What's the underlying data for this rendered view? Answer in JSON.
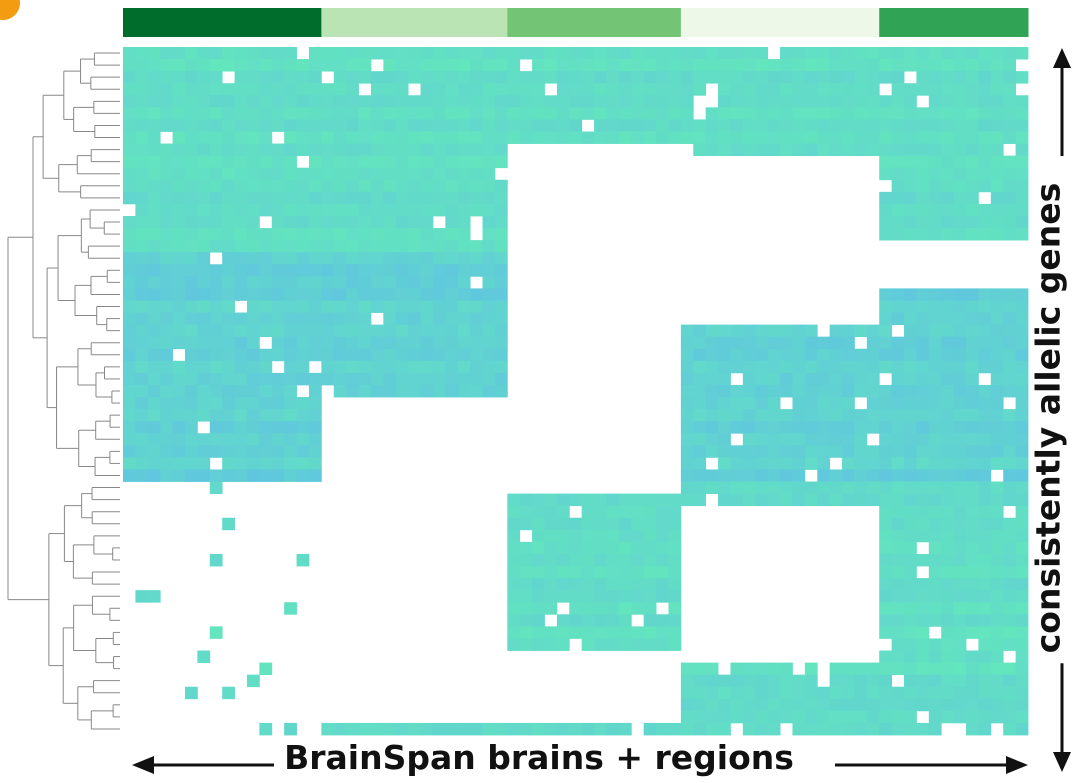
{
  "chart_data": {
    "type": "heatmap",
    "xlabel": "BrainSpan brains + regions",
    "ylabel": "consistently allelic genes",
    "n_rows": 57,
    "n_cols": 73,
    "dendrogram": "rows",
    "column_groups": [
      {
        "span": 16,
        "color": "#006d2c"
      },
      {
        "span": 15,
        "color": "#bae4b3"
      },
      {
        "span": 14,
        "color": "#74c476"
      },
      {
        "span": 16,
        "color": "#edf8e9"
      },
      {
        "span": 12,
        "color": "#31a354"
      }
    ],
    "cell_colors": {
      "low": "#5fbfe6",
      "high": "#63e6bc",
      "missing": "#ffffff"
    },
    "row_blocks": [
      {
        "rows": [
          0,
          16
        ],
        "value_range": [
          0.55,
          1.0
        ]
      },
      {
        "rows": [
          17,
          35
        ],
        "value_range": [
          0.15,
          0.75
        ]
      },
      {
        "rows": [
          36,
          56
        ],
        "value_range": [
          0.55,
          1.0
        ]
      }
    ],
    "missing_regions": [
      {
        "rows": [
          8,
          15
        ],
        "col_groups": [
          2
        ]
      },
      {
        "rows": [
          9,
          16
        ],
        "col_groups": [
          3
        ]
      },
      {
        "rows": [
          13,
          22
        ],
        "col_groups": [
          2,
          3
        ]
      },
      {
        "rows": [
          16,
          19
        ],
        "col_groups": [
          4
        ]
      },
      {
        "rows": [
          22,
          36
        ],
        "col_groups": [
          2
        ]
      },
      {
        "rows": [
          29,
          55
        ],
        "col_groups": [
          1
        ]
      },
      {
        "rows": [
          38,
          44
        ],
        "col_groups": [
          3
        ]
      },
      {
        "rows": [
          44,
          50
        ],
        "col_groups": [
          3
        ]
      },
      {
        "rows": [
          50,
          55
        ],
        "col_groups": [
          2
        ]
      }
    ]
  }
}
